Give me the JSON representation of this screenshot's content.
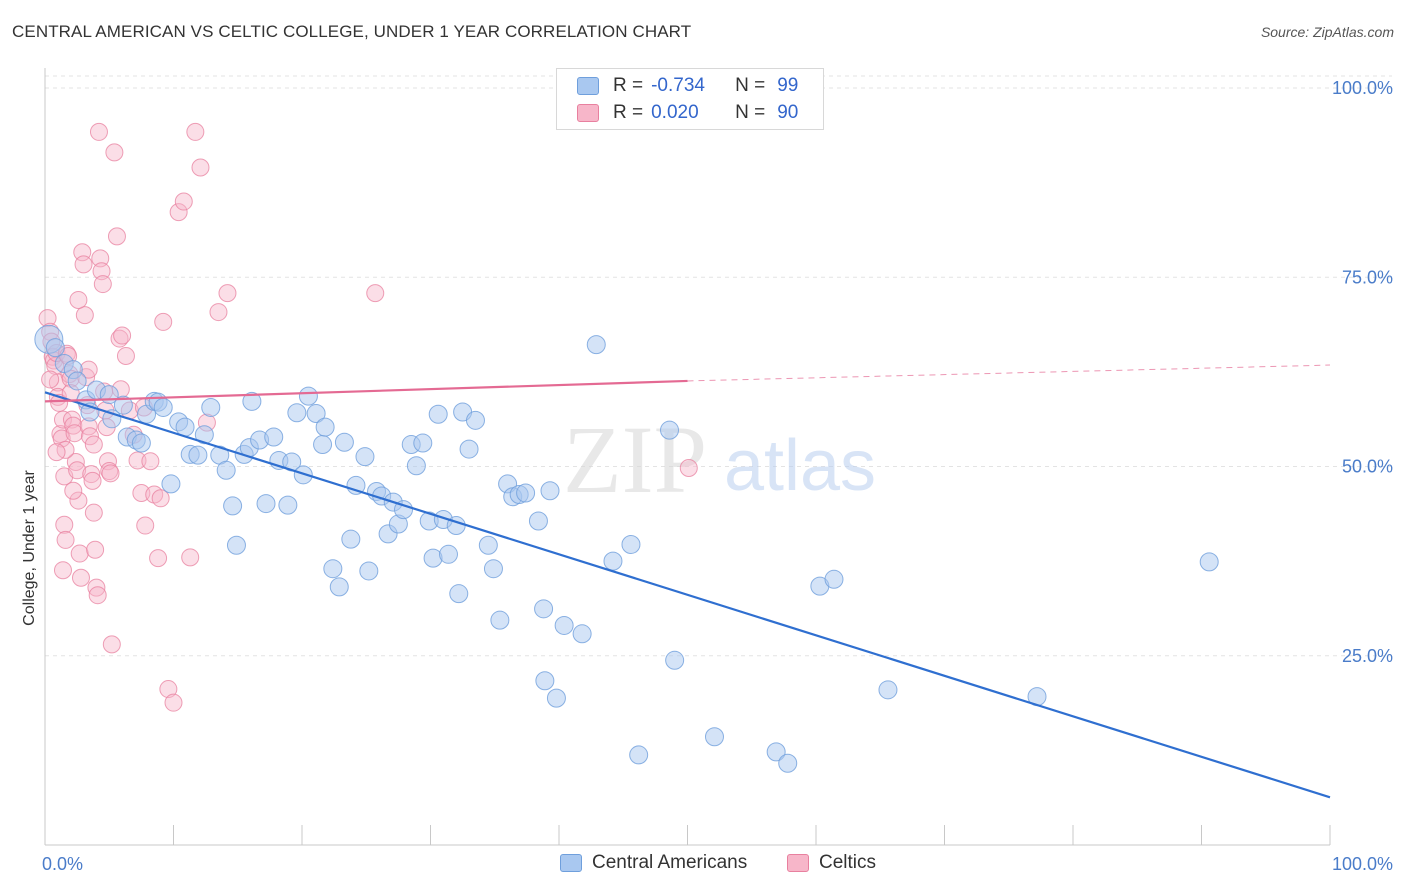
{
  "title": "CENTRAL AMERICAN VS CELTIC COLLEGE, UNDER 1 YEAR CORRELATION CHART",
  "source": "Source: ZipAtlas.com",
  "legend": {
    "rows": [
      {
        "r_label": "R = ",
        "r_value": "-0.734",
        "n_label": "N = ",
        "n_value": "99"
      },
      {
        "r_label": "R = ",
        "r_value": "0.020",
        "n_label": "N = ",
        "n_value": "90"
      }
    ]
  },
  "bottom_legend": [
    "Central Americans",
    "Celtics"
  ],
  "colors": {
    "blue_fill": "#a9c8f0",
    "blue_stroke": "#6f9fdc",
    "blue_line": "#2f6fd0",
    "pink_fill": "#f7b6c9",
    "pink_stroke": "#e8809f",
    "pink_line": "#e46a93",
    "tick_text": "#4a7cc9",
    "grid": "#e3e3e3"
  },
  "chart_data": {
    "type": "scatter",
    "title": "CENTRAL AMERICAN VS CELTIC COLLEGE, UNDER 1 YEAR CORRELATION CHART",
    "xlabel": "",
    "ylabel": "College, Under 1 year",
    "xlim": [
      0,
      100
    ],
    "ylim": [
      0,
      100
    ],
    "x_tick_labels": [
      "0.0%",
      "100.0%"
    ],
    "y_tick_values": [
      25,
      50,
      75,
      100
    ],
    "y_tick_labels": [
      "25.0%",
      "50.0%",
      "75.0%",
      "100.0%"
    ],
    "watermark": {
      "zip": "ZIP",
      "atlas": "atlas"
    },
    "series": [
      {
        "name": "Central Americans",
        "R": -0.734,
        "N": 99,
        "trend": {
          "x": [
            0,
            100
          ],
          "y": [
            59.8,
            6.3
          ]
        },
        "points": [
          [
            0.3,
            66.8
          ],
          [
            0.8,
            65.7
          ],
          [
            1.5,
            63.6
          ],
          [
            2.2,
            62.8
          ],
          [
            2.5,
            61.3
          ],
          [
            3.2,
            58.8
          ],
          [
            3.5,
            57.2
          ],
          [
            4.0,
            60.1
          ],
          [
            5.0,
            59.5
          ],
          [
            5.2,
            56.3
          ],
          [
            6.1,
            58.1
          ],
          [
            6.4,
            53.9
          ],
          [
            7.1,
            53.5
          ],
          [
            7.5,
            53.1
          ],
          [
            7.9,
            56.9
          ],
          [
            8.5,
            58.6
          ],
          [
            8.8,
            58.5
          ],
          [
            9.2,
            57.8
          ],
          [
            9.8,
            47.7
          ],
          [
            10.4,
            55.9
          ],
          [
            10.9,
            55.2
          ],
          [
            11.3,
            51.6
          ],
          [
            11.9,
            51.5
          ],
          [
            12.4,
            54.2
          ],
          [
            12.9,
            57.8
          ],
          [
            13.6,
            51.5
          ],
          [
            14.1,
            49.5
          ],
          [
            14.6,
            44.8
          ],
          [
            14.9,
            39.6
          ],
          [
            15.5,
            51.6
          ],
          [
            15.9,
            52.5
          ],
          [
            16.1,
            58.6
          ],
          [
            16.7,
            53.5
          ],
          [
            17.2,
            45.1
          ],
          [
            17.8,
            53.9
          ],
          [
            18.2,
            50.8
          ],
          [
            18.9,
            44.9
          ],
          [
            19.2,
            50.6
          ],
          [
            19.6,
            57.1
          ],
          [
            20.1,
            48.9
          ],
          [
            20.5,
            59.3
          ],
          [
            21.1,
            57.0
          ],
          [
            21.6,
            52.9
          ],
          [
            21.8,
            55.2
          ],
          [
            22.4,
            36.5
          ],
          [
            22.9,
            34.1
          ],
          [
            23.3,
            53.2
          ],
          [
            23.8,
            40.4
          ],
          [
            24.2,
            47.5
          ],
          [
            24.9,
            51.3
          ],
          [
            25.2,
            36.2
          ],
          [
            25.8,
            46.7
          ],
          [
            26.2,
            46.1
          ],
          [
            26.7,
            41.1
          ],
          [
            27.1,
            45.3
          ],
          [
            27.5,
            42.4
          ],
          [
            27.9,
            44.3
          ],
          [
            28.5,
            52.9
          ],
          [
            28.9,
            50.1
          ],
          [
            29.4,
            53.1
          ],
          [
            29.9,
            42.8
          ],
          [
            30.2,
            37.9
          ],
          [
            30.6,
            56.9
          ],
          [
            31.0,
            43.0
          ],
          [
            31.4,
            38.4
          ],
          [
            32.0,
            42.2
          ],
          [
            32.2,
            33.2
          ],
          [
            32.5,
            57.2
          ],
          [
            33.0,
            52.3
          ],
          [
            33.5,
            56.1
          ],
          [
            34.5,
            39.6
          ],
          [
            34.9,
            36.5
          ],
          [
            35.4,
            29.7
          ],
          [
            36.0,
            47.7
          ],
          [
            36.4,
            46.0
          ],
          [
            36.9,
            46.3
          ],
          [
            37.4,
            46.5
          ],
          [
            38.4,
            42.8
          ],
          [
            38.8,
            31.2
          ],
          [
            38.9,
            21.7
          ],
          [
            39.3,
            46.8
          ],
          [
            39.8,
            19.4
          ],
          [
            40.4,
            29.0
          ],
          [
            41.8,
            27.9
          ],
          [
            42.9,
            66.1
          ],
          [
            44.2,
            37.5
          ],
          [
            45.6,
            39.7
          ],
          [
            46.2,
            11.9
          ],
          [
            48.6,
            54.8
          ],
          [
            49.0,
            24.4
          ],
          [
            52.1,
            14.3
          ],
          [
            56.9,
            12.3
          ],
          [
            57.8,
            10.8
          ],
          [
            60.3,
            34.2
          ],
          [
            61.4,
            35.1
          ],
          [
            65.6,
            20.5
          ],
          [
            77.2,
            19.6
          ],
          [
            90.6,
            37.4
          ]
        ]
      },
      {
        "name": "Celtics",
        "R": 0.02,
        "N": 90,
        "trend": {
          "x": [
            0,
            50
          ],
          "y": [
            58.6,
            61.3
          ],
          "dashed_to": {
            "x": 100,
            "y": 63.4
          }
        },
        "points": [
          [
            0.2,
            69.6
          ],
          [
            0.4,
            67.8
          ],
          [
            0.5,
            66.5
          ],
          [
            0.6,
            64.5
          ],
          [
            0.7,
            64.0
          ],
          [
            0.8,
            63.3
          ],
          [
            0.9,
            65.0
          ],
          [
            1.0,
            61.1
          ],
          [
            1.0,
            59.2
          ],
          [
            1.1,
            58.4
          ],
          [
            1.2,
            54.3
          ],
          [
            1.3,
            53.7
          ],
          [
            1.4,
            56.2
          ],
          [
            1.5,
            48.7
          ],
          [
            1.5,
            42.3
          ],
          [
            1.6,
            40.3
          ],
          [
            1.7,
            64.9
          ],
          [
            1.8,
            64.6
          ],
          [
            1.9,
            62.2
          ],
          [
            2.0,
            61.6
          ],
          [
            2.0,
            59.7
          ],
          [
            2.1,
            56.2
          ],
          [
            2.2,
            55.4
          ],
          [
            2.3,
            54.4
          ],
          [
            2.4,
            50.6
          ],
          [
            2.5,
            49.5
          ],
          [
            2.6,
            45.5
          ],
          [
            2.7,
            38.5
          ],
          [
            2.8,
            35.3
          ],
          [
            2.9,
            78.3
          ],
          [
            3.0,
            76.7
          ],
          [
            3.1,
            70.0
          ],
          [
            3.2,
            61.8
          ],
          [
            3.3,
            58.1
          ],
          [
            3.4,
            55.3
          ],
          [
            3.5,
            54.0
          ],
          [
            3.6,
            49.0
          ],
          [
            3.7,
            48.1
          ],
          [
            3.8,
            43.9
          ],
          [
            3.9,
            39.0
          ],
          [
            4.0,
            34.0
          ],
          [
            4.1,
            33.0
          ],
          [
            4.2,
            94.2
          ],
          [
            4.3,
            77.5
          ],
          [
            4.4,
            75.8
          ],
          [
            4.5,
            74.1
          ],
          [
            4.6,
            59.9
          ],
          [
            4.7,
            57.4
          ],
          [
            4.8,
            55.2
          ],
          [
            4.9,
            50.7
          ],
          [
            5.0,
            49.4
          ],
          [
            5.1,
            49.1
          ],
          [
            5.2,
            26.5
          ],
          [
            5.4,
            91.5
          ],
          [
            5.6,
            80.4
          ],
          [
            5.8,
            66.9
          ],
          [
            6.0,
            67.3
          ],
          [
            6.3,
            64.6
          ],
          [
            6.6,
            57.4
          ],
          [
            6.9,
            54.2
          ],
          [
            7.2,
            50.8
          ],
          [
            7.5,
            46.5
          ],
          [
            7.8,
            42.2
          ],
          [
            8.2,
            50.7
          ],
          [
            8.5,
            46.3
          ],
          [
            8.8,
            37.9
          ],
          [
            9.2,
            69.1
          ],
          [
            9.6,
            20.6
          ],
          [
            10.0,
            18.8
          ],
          [
            10.4,
            83.6
          ],
          [
            10.8,
            85.0
          ],
          [
            11.3,
            38.0
          ],
          [
            11.7,
            94.2
          ],
          [
            12.1,
            89.5
          ],
          [
            13.5,
            70.4
          ],
          [
            14.2,
            72.9
          ],
          [
            25.7,
            72.9
          ],
          [
            50.1,
            49.8
          ],
          [
            1.6,
            52.2
          ],
          [
            2.2,
            46.8
          ],
          [
            3.4,
            62.8
          ],
          [
            0.4,
            61.5
          ],
          [
            0.9,
            51.9
          ],
          [
            1.4,
            36.3
          ],
          [
            2.6,
            72.0
          ],
          [
            3.8,
            52.9
          ],
          [
            5.9,
            60.2
          ],
          [
            7.7,
            57.8
          ],
          [
            9.0,
            45.8
          ],
          [
            12.6,
            55.8
          ]
        ]
      }
    ]
  }
}
